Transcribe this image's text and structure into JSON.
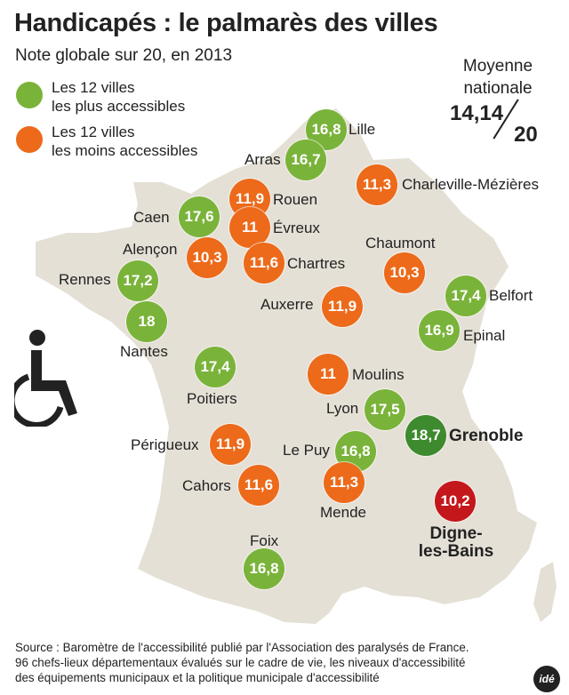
{
  "title": "Handicapés : le palmarès des villes",
  "subtitle": "Note globale sur 20, en 2013",
  "legend": [
    {
      "label_line1": "Les 12 villes",
      "label_line2": "les plus accessibles",
      "color": "#7ab33a"
    },
    {
      "label_line1": "Les 12 villes",
      "label_line2": "les moins accessibles",
      "color": "#ec6a1a"
    }
  ],
  "national_average": {
    "label_line1": "Moyenne",
    "label_line2": "nationale",
    "value": "14,14",
    "denominator": "20"
  },
  "colors": {
    "green": "#7ab33a",
    "orange": "#ec6a1a",
    "best": "#3e8a2e",
    "worst": "#c4171c",
    "map": "#e5e0d6"
  },
  "cities": [
    {
      "name": "Lille",
      "score": "16,8",
      "category": "green"
    },
    {
      "name": "Arras",
      "score": "16,7",
      "category": "green"
    },
    {
      "name": "Rouen",
      "score": "11,9",
      "category": "orange"
    },
    {
      "name": "Évreux",
      "score": "11",
      "category": "orange"
    },
    {
      "name": "Chartres",
      "score": "11,6",
      "category": "orange"
    },
    {
      "name": "Caen",
      "score": "17,6",
      "category": "green"
    },
    {
      "name": "Alençon",
      "score": "10,3",
      "category": "orange"
    },
    {
      "name": "Rennes",
      "score": "17,2",
      "category": "green"
    },
    {
      "name": "Nantes",
      "score": "18",
      "category": "green"
    },
    {
      "name": "Charleville-Mézières",
      "score": "11,3",
      "category": "orange"
    },
    {
      "name": "Chaumont",
      "score": "10,3",
      "category": "orange"
    },
    {
      "name": "Auxerre",
      "score": "11,9",
      "category": "orange"
    },
    {
      "name": "Belfort",
      "score": "17,4",
      "category": "green"
    },
    {
      "name": "Epinal",
      "score": "16,9",
      "category": "green"
    },
    {
      "name": "Poitiers",
      "score": "17,4",
      "category": "green"
    },
    {
      "name": "Moulins",
      "score": "11",
      "category": "orange"
    },
    {
      "name": "Lyon",
      "score": "17,5",
      "category": "green"
    },
    {
      "name": "Grenoble",
      "score": "18,7",
      "category": "best"
    },
    {
      "name": "Périgueux",
      "score": "11,9",
      "category": "orange"
    },
    {
      "name": "Le Puy",
      "score": "16,8",
      "category": "green"
    },
    {
      "name": "Cahors",
      "score": "11,6",
      "category": "orange"
    },
    {
      "name": "Mende",
      "score": "11,3",
      "category": "orange"
    },
    {
      "name": "Digne-les-Bains",
      "name_line1": "Digne-",
      "name_line2": "les-Bains",
      "score": "10,2",
      "category": "worst"
    },
    {
      "name": "Foix",
      "score": "16,8",
      "category": "green"
    }
  ],
  "source_lines": [
    "Source : Baromètre de l'accessibilité publié par l'Association des paralysés de France.",
    "96 chefs-lieux départementaux évalués sur le cadre de vie, les niveaux d'accessibilité",
    "des équipements municipaux et la politique municipale d'accessibilité"
  ],
  "logo_text": "idé"
}
